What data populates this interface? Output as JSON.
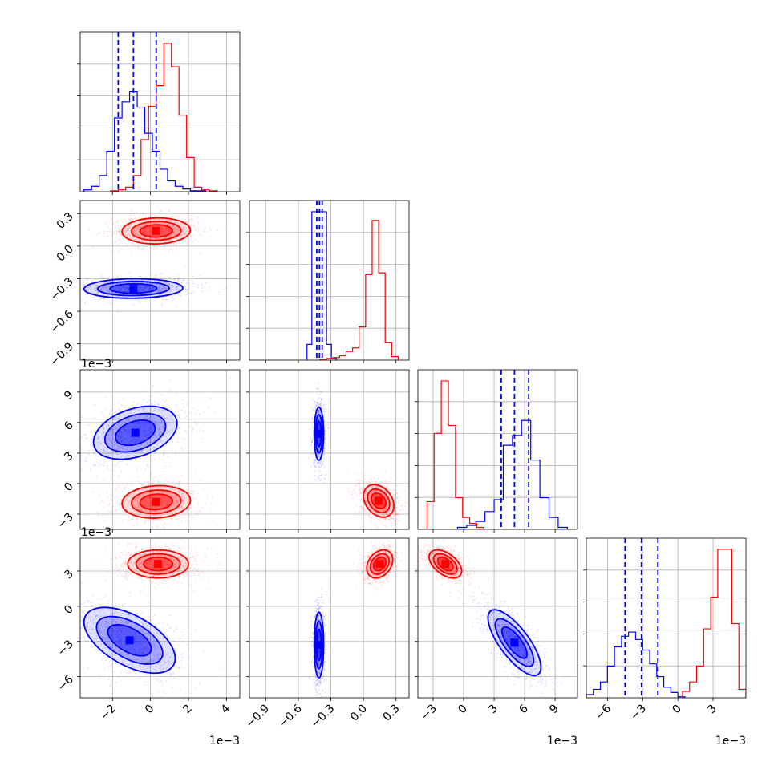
{
  "chart_data": {
    "type": "corner",
    "series": [
      {
        "name": "",
        "color": "#0000ff"
      },
      {
        "name": "",
        "color": "#ff0000"
      }
    ],
    "parameters": [
      {
        "range": [
          -0.0037,
          0.0047
        ],
        "ticks": [
          -0.002,
          0,
          0.002,
          0.004
        ],
        "tick_labels": [
          "−2",
          "0",
          "2",
          "4"
        ],
        "offset_text": "1e−3"
      },
      {
        "range": [
          -1.05,
          0.42
        ],
        "ticks": [
          -0.9,
          -0.6,
          -0.3,
          0.0,
          0.3
        ],
        "tick_labels": [
          "−0.9",
          "−0.6",
          "−0.3",
          "0.0",
          "0.3"
        ],
        "offset_text": ""
      },
      {
        "range": [
          -0.0045,
          0.0112
        ],
        "ticks": [
          -0.003,
          0,
          0.003,
          0.006,
          0.009
        ],
        "tick_labels": [
          "−3",
          "0",
          "3",
          "6",
          "9"
        ],
        "offset_text": "1e−3"
      },
      {
        "range": [
          -0.0078,
          0.0058
        ],
        "ticks": [
          -0.006,
          -0.003,
          0,
          0.003
        ],
        "tick_labels": [
          "−6",
          "−3",
          "0",
          "3"
        ],
        "offset_text": "1e−3"
      }
    ],
    "histograms": [
      {
        "blue": {
          "edges": [
            -0.0035,
            -0.0031,
            -0.0027,
            -0.0023,
            -0.0019,
            -0.0015,
            -0.0011,
            -0.0007,
            -0.0003,
            0.0001,
            0.0005,
            0.0009,
            0.0013,
            0.0017,
            0.0021,
            0.0025,
            0.0029
          ],
          "counts": [
            2,
            6,
            18,
            45,
            82,
            100,
            111,
            94,
            65,
            45,
            25,
            12,
            6,
            3,
            1,
            1
          ]
        },
        "red": {
          "edges": [
            -0.0021,
            -0.0017,
            -0.0013,
            -0.0009,
            -0.0005,
            -0.0001,
            0.0003,
            0.0007,
            0.0011,
            0.0015,
            0.0019,
            0.0023,
            0.0027,
            0.0031,
            0.0035
          ],
          "counts": [
            1,
            2,
            5,
            18,
            58,
            95,
            118,
            165,
            139,
            85,
            38,
            5,
            2,
            1
          ]
        },
        "blue_quantiles": [
          -0.0017,
          -0.0009,
          0.0003
        ]
      },
      {
        "blue": {
          "edges": [
            -0.52,
            -0.475,
            -0.43,
            -0.385,
            -0.34,
            -0.295,
            -0.25
          ],
          "counts": [
            18,
            170,
            170,
            170,
            18,
            2
          ]
        },
        "red": {
          "edges": [
            -0.4,
            -0.34,
            -0.28,
            -0.22,
            -0.16,
            -0.1,
            -0.04,
            0.02,
            0.08,
            0.14,
            0.2,
            0.26,
            0.32
          ],
          "counts": [
            1,
            2,
            3,
            5,
            10,
            14,
            38,
            98,
            160,
            100,
            20,
            4
          ]
        },
        "blue_quantiles": [
          -0.43,
          -0.405,
          -0.38
        ]
      },
      {
        "blue": {
          "edges": [
            -0.0006,
            0.0003,
            0.0012,
            0.0021,
            0.003,
            0.0039,
            0.0048,
            0.0057,
            0.0066,
            0.0075,
            0.0084,
            0.0093,
            0.0102
          ],
          "counts": [
            2,
            4,
            8,
            18,
            30,
            85,
            95,
            110,
            70,
            32,
            12,
            2
          ]
        },
        "red": {
          "edges": [
            -0.0036,
            -0.0029,
            -0.0022,
            -0.0015,
            -0.0008,
            -0.0001,
            0.0006,
            0.0013,
            0.002
          ],
          "counts": [
            28,
            97,
            150,
            105,
            32,
            12,
            6,
            2
          ]
        },
        "blue_quantiles": [
          0.0037,
          0.005,
          0.0064
        ]
      },
      {
        "blue": {
          "edges": [
            -0.0078,
            -0.0072,
            -0.0066,
            -0.006,
            -0.0054,
            -0.0048,
            -0.0042,
            -0.0036,
            -0.003,
            -0.0024,
            -0.0018,
            -0.0012,
            -0.0006,
            0,
            0.0006
          ],
          "counts": [
            3,
            8,
            15,
            30,
            48,
            58,
            62,
            55,
            45,
            32,
            20,
            10,
            5,
            1
          ]
        },
        "red": {
          "edges": [
            0.0004,
            0.001,
            0.0016,
            0.0022,
            0.0028,
            0.0034,
            0.004,
            0.0046,
            0.0052,
            0.0058
          ],
          "counts": [
            6,
            15,
            30,
            65,
            95,
            140,
            140,
            70,
            8
          ]
        },
        "blue_quantiles": [
          -0.0045,
          -0.0031,
          -0.0017
        ]
      }
    ],
    "joint": {
      "1_0": {
        "blue": {
          "mx": -0.0009,
          "my": -0.39,
          "sx": 0.0013,
          "sy": 0.045,
          "rho": 0.05
        },
        "red": {
          "mx": 0.0003,
          "my": 0.14,
          "sx": 0.0009,
          "sy": 0.06,
          "rho": 0.05
        }
      },
      "2_0": {
        "blue": {
          "mx": -0.0008,
          "my": 0.005,
          "sx": 0.0011,
          "sy": 0.0013,
          "rho": 0.35
        },
        "red": {
          "mx": 0.0003,
          "my": -0.0018,
          "sx": 0.0009,
          "sy": 0.0008,
          "rho": 0.1
        }
      },
      "2_1": {
        "blue": {
          "mx": -0.41,
          "my": 0.0049,
          "sx": 0.022,
          "sy": 0.0013,
          "rho": 0.0
        },
        "red": {
          "mx": 0.14,
          "my": -0.0017,
          "sx": 0.07,
          "sy": 0.0008,
          "rho": -0.3
        }
      },
      "3_0": {
        "blue": {
          "mx": -0.0011,
          "my": -0.0029,
          "sx": 0.0012,
          "sy": 0.0014,
          "rho": -0.55
        },
        "red": {
          "mx": 0.0004,
          "my": 0.0036,
          "sx": 0.0008,
          "sy": 0.0006,
          "rho": 0.0
        }
      },
      "3_1": {
        "blue": {
          "mx": -0.41,
          "my": -0.0033,
          "sx": 0.022,
          "sy": 0.0014,
          "rho": 0.0
        },
        "red": {
          "mx": 0.15,
          "my": 0.0036,
          "sx": 0.06,
          "sy": 0.0006,
          "rho": 0.3
        }
      },
      "3_2": {
        "blue": {
          "mx": 0.005,
          "my": -0.0031,
          "sx": 0.0013,
          "sy": 0.0014,
          "rho": -0.75
        },
        "red": {
          "mx": -0.0018,
          "my": 0.0036,
          "sx": 0.0008,
          "sy": 0.0006,
          "rho": -0.5
        }
      }
    }
  }
}
